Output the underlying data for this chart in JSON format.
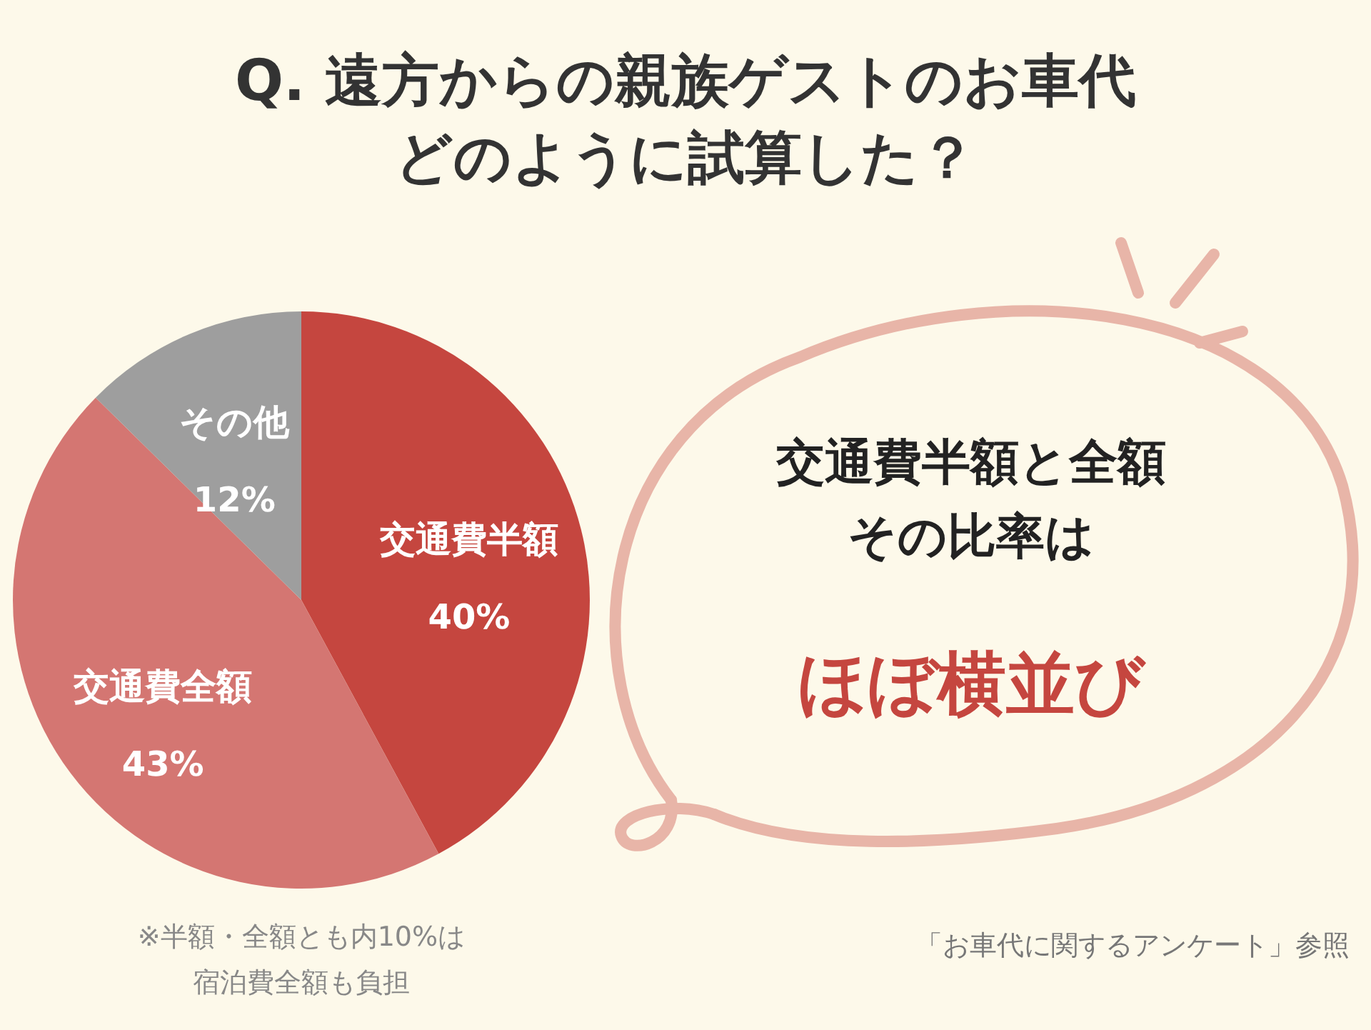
{
  "chart_data": {
    "type": "pie",
    "title": "Q. 遠方からの親族ゲストのお車代",
    "subtitle": "どのように試算した？",
    "categories": [
      "交通費半額",
      "交通費全額",
      "その他"
    ],
    "values": [
      40,
      43,
      12
    ],
    "value_labels": [
      "40%",
      "43%",
      "12%"
    ],
    "colors": [
      "#c5463f",
      "#d47672",
      "#9e9e9e"
    ],
    "annotations": [
      "交通費半額と全額",
      "その比率は",
      "ほぼ横並び",
      "※半額・全額とも内10%は",
      "宿泊費全額も負担",
      "「お車代に関するアンケート」参照"
    ]
  }
}
